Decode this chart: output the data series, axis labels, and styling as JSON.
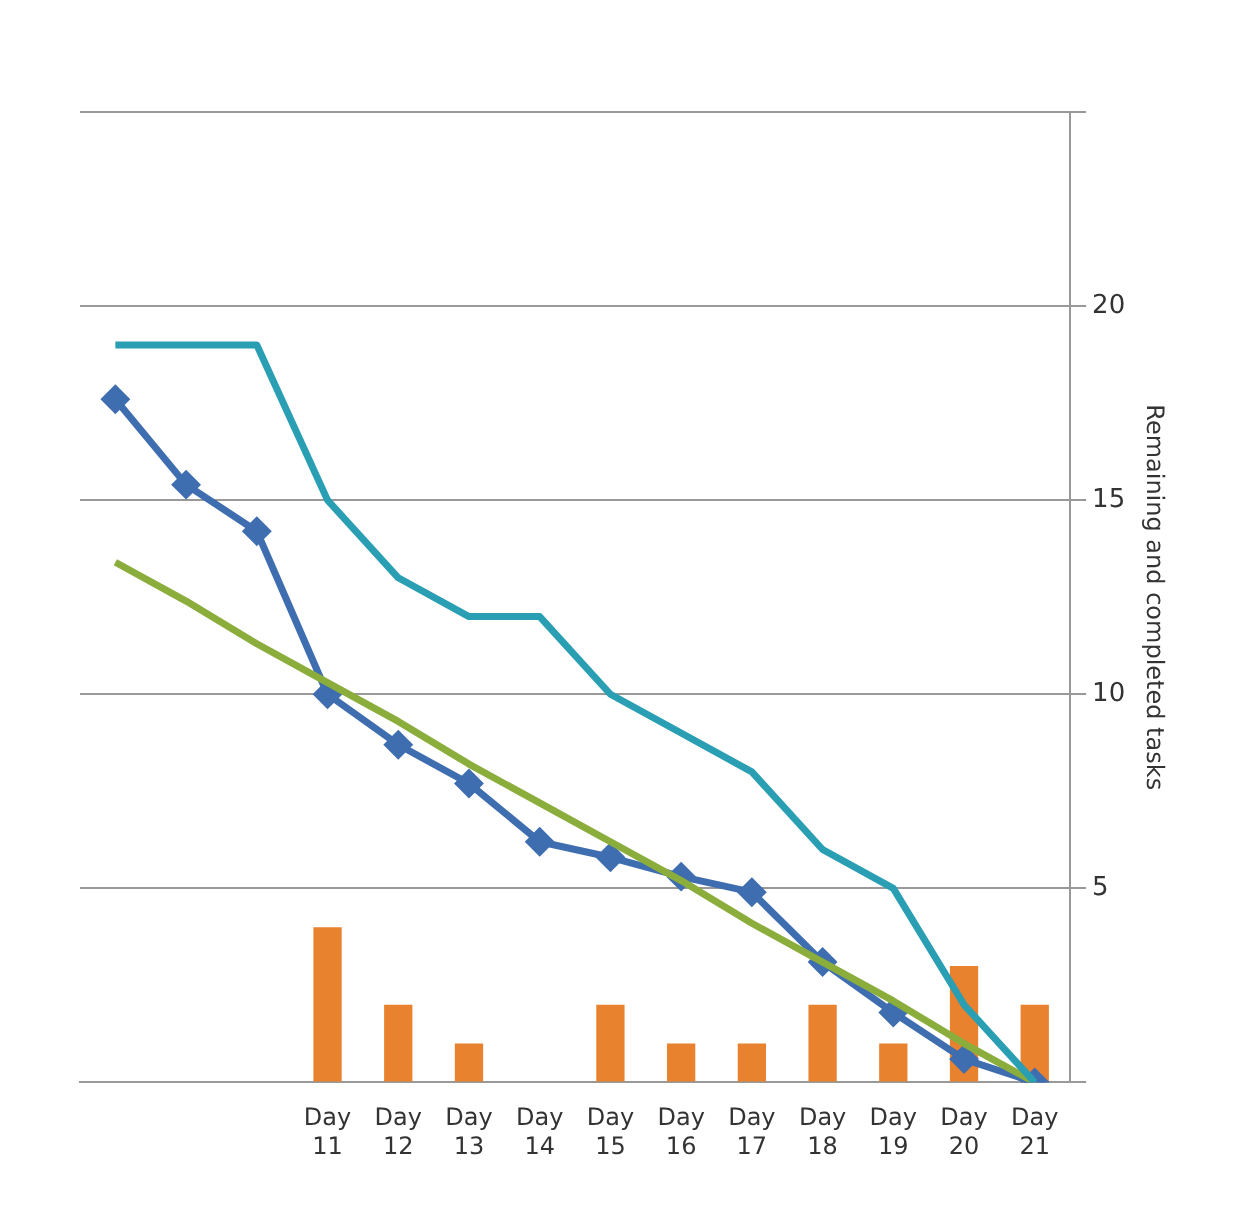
{
  "chart_data": {
    "type": "line",
    "ylabel": "Remaining and completed tasks",
    "categories": [
      null,
      null,
      null,
      "Day 11",
      "Day 12",
      "Day 13",
      "Day 14",
      "Day 15",
      "Day 16",
      "Day 17",
      "Day 18",
      "Day 19",
      "Day 20",
      "Day 21"
    ],
    "series": [
      {
        "type": "bar",
        "color": "#e8822e",
        "values": [
          null,
          null,
          null,
          4,
          2,
          1,
          0,
          2,
          1,
          1,
          2,
          1,
          3,
          2
        ]
      },
      {
        "color": "#2a9fb3",
        "marker": "none",
        "values": [
          19,
          19,
          19,
          15,
          13,
          12,
          12,
          10,
          9,
          8,
          6,
          5,
          2,
          0
        ]
      },
      {
        "color": "#8aad3c",
        "marker": "none",
        "values": [
          13.4,
          12.4,
          11.3,
          10.3,
          9.3,
          8.2,
          7.2,
          6.2,
          5.2,
          4.1,
          3.1,
          2.1,
          1.0,
          0
        ]
      },
      {
        "color": "#3e6db0",
        "marker": "diamond",
        "values": [
          17.6,
          15.4,
          14.2,
          10,
          8.7,
          7.7,
          6.2,
          5.8,
          5.3,
          4.9,
          3.1,
          1.8,
          0.6,
          0
        ]
      }
    ],
    "ylim": [
      0,
      25
    ],
    "yticks": [
      {
        "value": 0,
        "label": null
      },
      5,
      10,
      15,
      20,
      {
        "value": 25,
        "label": null
      }
    ],
    "grid": "y",
    "line_style": "solid"
  }
}
